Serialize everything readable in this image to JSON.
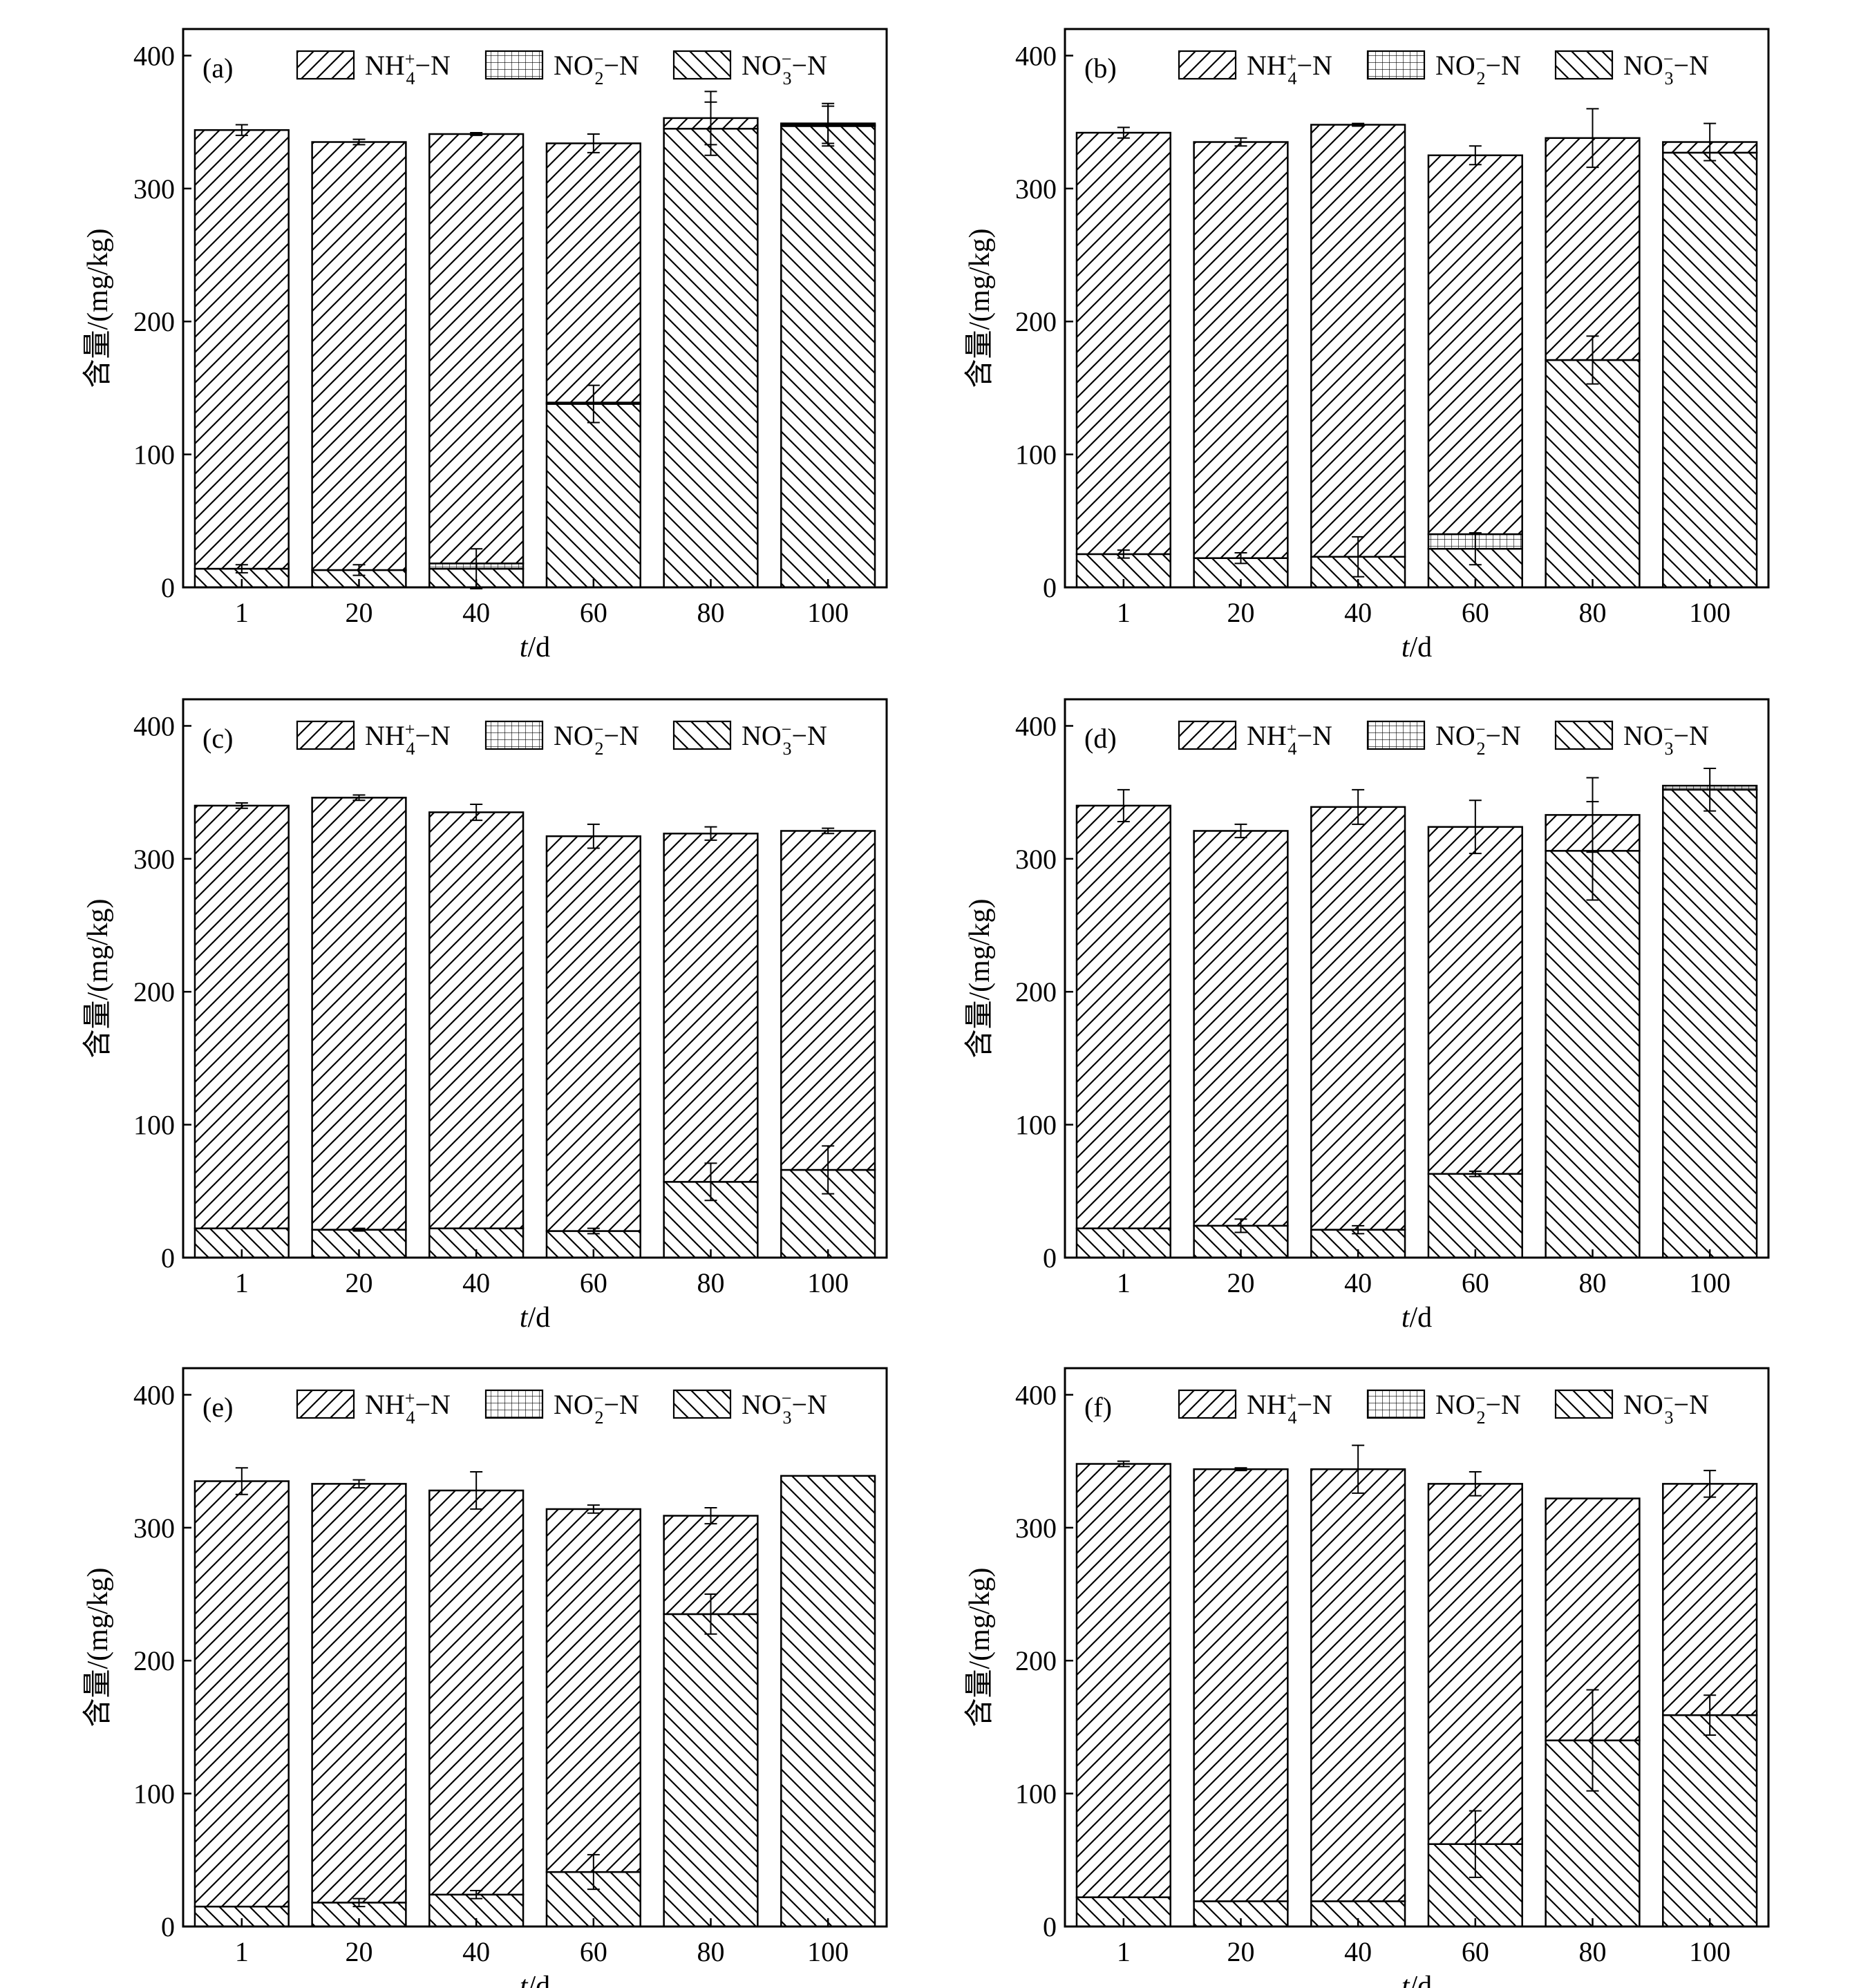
{
  "figure": {
    "ylabel": "含量/(mg/kg)",
    "xlabel_var": "t",
    "xlabel_unit": "/d",
    "legend": [
      {
        "key": "nh4",
        "base": "NH",
        "sub": "4",
        "sup": "+",
        "suffix": "−N",
        "pattern": "nh4"
      },
      {
        "key": "no2",
        "base": "NO",
        "sub": "2",
        "sup": "−",
        "suffix": "−N",
        "pattern": "no2"
      },
      {
        "key": "no3",
        "base": "NO",
        "sub": "3",
        "sup": "−",
        "suffix": "−N",
        "pattern": "no3"
      }
    ]
  },
  "chart_data": [
    {
      "type": "bar",
      "stacked": true,
      "panel": "(a)",
      "categories": [
        "1",
        "20",
        "40",
        "60",
        "80",
        "100"
      ],
      "ylim": [
        0,
        420
      ],
      "yticks": [
        0,
        100,
        200,
        300,
        400
      ],
      "legend_position": "top",
      "series": [
        {
          "name": "NO3−N",
          "values": [
            14,
            13,
            14,
            138,
            345,
            347
          ],
          "err": [
            3,
            4,
            15,
            14,
            20,
            15
          ]
        },
        {
          "name": "NO2−N",
          "values": [
            0,
            0,
            4,
            1,
            0,
            1
          ],
          "err": [
            0,
            0,
            0,
            0,
            0,
            0
          ]
        },
        {
          "name": "NH4+−N",
          "values": [
            330,
            322,
            323,
            195,
            8,
            1
          ],
          "err": [
            4,
            2,
            1,
            7,
            20,
            15
          ]
        }
      ]
    },
    {
      "type": "bar",
      "stacked": true,
      "panel": "(b)",
      "categories": [
        "1",
        "20",
        "40",
        "60",
        "80",
        "100"
      ],
      "ylim": [
        0,
        420
      ],
      "yticks": [
        0,
        100,
        200,
        300,
        400
      ],
      "legend_position": "top",
      "series": [
        {
          "name": "NO3−N",
          "values": [
            25,
            22,
            23,
            29,
            171,
            327
          ],
          "err": [
            3,
            4,
            15,
            12,
            18,
            0
          ]
        },
        {
          "name": "NO2−N",
          "values": [
            0,
            0,
            0,
            11,
            0,
            0
          ],
          "err": [
            0,
            0,
            0,
            0,
            0,
            0
          ]
        },
        {
          "name": "NH4+−N",
          "values": [
            317,
            313,
            325,
            285,
            167,
            8
          ],
          "err": [
            4,
            3,
            1,
            7,
            22,
            14
          ]
        }
      ]
    },
    {
      "type": "bar",
      "stacked": true,
      "panel": "(c)",
      "categories": [
        "1",
        "20",
        "40",
        "60",
        "80",
        "100"
      ],
      "ylim": [
        0,
        420
      ],
      "yticks": [
        0,
        100,
        200,
        300,
        400
      ],
      "legend_position": "top",
      "series": [
        {
          "name": "NO3−N",
          "values": [
            22,
            21,
            22,
            20,
            57,
            66
          ],
          "err": [
            0,
            1,
            0,
            2,
            14,
            18
          ]
        },
        {
          "name": "NO2−N",
          "values": [
            0,
            0,
            0,
            0,
            0,
            0
          ],
          "err": [
            0,
            0,
            0,
            0,
            0,
            0
          ]
        },
        {
          "name": "NH4+−N",
          "values": [
            318,
            325,
            313,
            297,
            262,
            255
          ],
          "err": [
            2,
            2,
            6,
            9,
            5,
            2
          ]
        }
      ]
    },
    {
      "type": "bar",
      "stacked": true,
      "panel": "(d)",
      "categories": [
        "1",
        "20",
        "40",
        "60",
        "80",
        "100"
      ],
      "ylim": [
        0,
        420
      ],
      "yticks": [
        0,
        100,
        200,
        300,
        400
      ],
      "legend_position": "top",
      "series": [
        {
          "name": "NO3−N",
          "values": [
            22,
            24,
            21,
            63,
            306,
            352
          ],
          "err": [
            0,
            5,
            3,
            2,
            37,
            16
          ]
        },
        {
          "name": "NO2−N",
          "values": [
            0,
            0,
            0,
            0,
            0,
            3
          ],
          "err": [
            0,
            0,
            0,
            0,
            0,
            0
          ]
        },
        {
          "name": "NH4+−N",
          "values": [
            318,
            297,
            318,
            261,
            27,
            0
          ],
          "err": [
            12,
            5,
            13,
            20,
            28,
            14
          ]
        }
      ]
    },
    {
      "type": "bar",
      "stacked": true,
      "panel": "(e)",
      "categories": [
        "1",
        "20",
        "40",
        "60",
        "80",
        "100"
      ],
      "ylim": [
        0,
        420
      ],
      "yticks": [
        0,
        100,
        200,
        300,
        400
      ],
      "legend_position": "top",
      "series": [
        {
          "name": "NO3−N",
          "values": [
            15,
            18,
            24,
            41,
            235,
            339
          ],
          "err": [
            0,
            3,
            3,
            13,
            15,
            0
          ]
        },
        {
          "name": "NO2−N",
          "values": [
            0,
            0,
            0,
            0,
            0,
            0
          ],
          "err": [
            0,
            0,
            0,
            0,
            0,
            0
          ]
        },
        {
          "name": "NH4+−N",
          "values": [
            320,
            315,
            304,
            273,
            74,
            0
          ],
          "err": [
            10,
            3,
            14,
            3,
            6,
            12
          ]
        }
      ]
    },
    {
      "type": "bar",
      "stacked": true,
      "panel": "(f)",
      "categories": [
        "1",
        "20",
        "40",
        "60",
        "80",
        "100"
      ],
      "ylim": [
        0,
        420
      ],
      "yticks": [
        0,
        100,
        200,
        300,
        400
      ],
      "legend_position": "top",
      "series": [
        {
          "name": "NO3−N",
          "values": [
            22,
            19,
            19,
            62,
            140,
            159
          ],
          "err": [
            0,
            0,
            0,
            25,
            38,
            15
          ]
        },
        {
          "name": "NO2−N",
          "values": [
            0,
            0,
            0,
            0,
            0,
            0
          ],
          "err": [
            0,
            0,
            0,
            0,
            0,
            0
          ]
        },
        {
          "name": "NH4+−N",
          "values": [
            326,
            325,
            325,
            271,
            182,
            174
          ],
          "err": [
            2,
            1,
            18,
            9,
            0,
            10
          ]
        }
      ]
    }
  ]
}
